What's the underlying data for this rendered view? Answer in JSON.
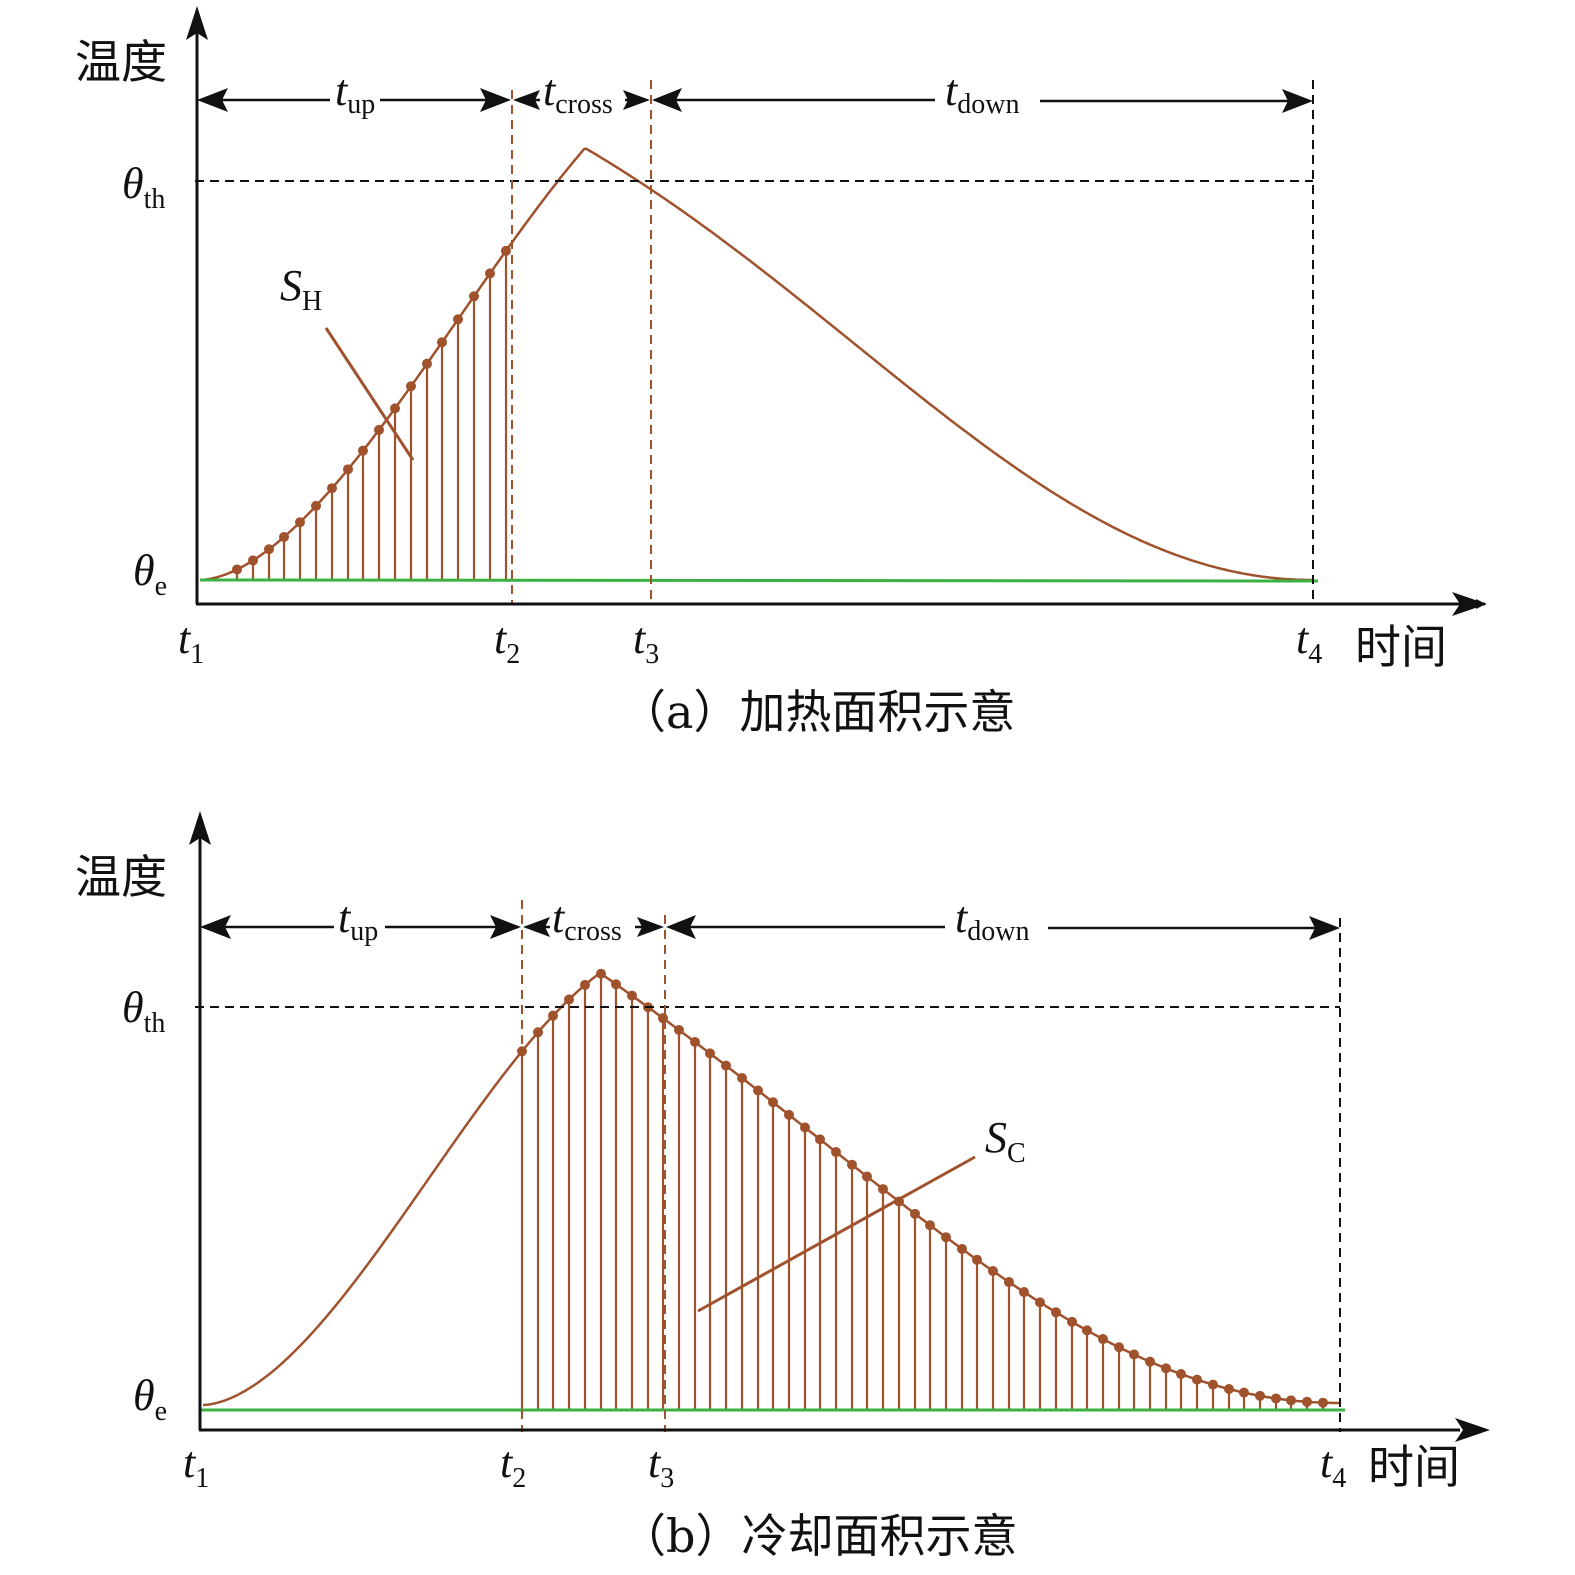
{
  "panels": [
    {
      "id": "a",
      "y_axis_label": "温度",
      "x_axis_label": "时间",
      "caption": "（a）加热面积示意",
      "y_ticks": {
        "theta_th": {
          "sym": "θ",
          "sub": "th"
        },
        "theta_e": {
          "sym": "θ",
          "sub": "e"
        }
      },
      "x_ticks": [
        {
          "sym": "t",
          "sub": "1"
        },
        {
          "sym": "t",
          "sub": "2"
        },
        {
          "sym": "t",
          "sub": "3"
        },
        {
          "sym": "t",
          "sub": "4"
        }
      ],
      "intervals": [
        {
          "sym": "t",
          "sub": "up"
        },
        {
          "sym": "t",
          "sub": "cross"
        },
        {
          "sym": "t",
          "sub": "down"
        }
      ],
      "area_label": {
        "sym": "S",
        "sub": "H"
      },
      "shaded_region": "t1-t2"
    },
    {
      "id": "b",
      "y_axis_label": "温度",
      "x_axis_label": "时间",
      "caption": "（b）冷却面积示意",
      "y_ticks": {
        "theta_th": {
          "sym": "θ",
          "sub": "th"
        },
        "theta_e": {
          "sym": "θ",
          "sub": "e"
        }
      },
      "x_ticks": [
        {
          "sym": "t",
          "sub": "1"
        },
        {
          "sym": "t",
          "sub": "2"
        },
        {
          "sym": "t",
          "sub": "3"
        },
        {
          "sym": "t",
          "sub": "4"
        }
      ],
      "intervals": [
        {
          "sym": "t",
          "sub": "up"
        },
        {
          "sym": "t",
          "sub": "cross"
        },
        {
          "sym": "t",
          "sub": "down"
        }
      ],
      "area_label": {
        "sym": "S",
        "sub": "C"
      },
      "shaded_region": "t2-t4"
    }
  ],
  "colors": {
    "curve": "#a0522d",
    "baseline": "#3cb043",
    "axes": "#111111",
    "guides": "#111111",
    "markers": "#a0522d"
  }
}
